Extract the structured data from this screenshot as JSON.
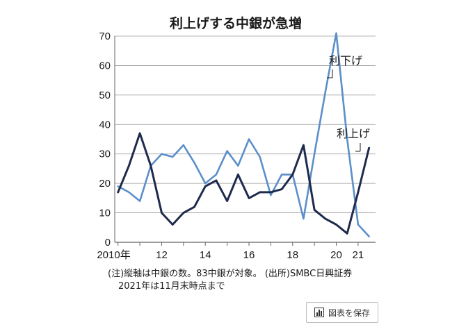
{
  "chart_data": {
    "type": "line",
    "title": "利上げする中銀が急増",
    "x": [
      2010.0,
      2010.5,
      2011.0,
      2011.5,
      2012.0,
      2012.5,
      2013.0,
      2013.5,
      2014.0,
      2014.5,
      2015.0,
      2015.5,
      2016.0,
      2016.5,
      2017.0,
      2017.5,
      2018.0,
      2018.5,
      2019.0,
      2019.5,
      2020.0,
      2020.5,
      2021.0,
      2021.5
    ],
    "series": [
      {
        "name": "利下げ",
        "color": "#5b8fc9",
        "values": [
          19,
          17,
          14,
          26,
          30,
          29,
          33,
          27,
          20,
          23,
          31,
          26,
          35,
          29,
          16,
          23,
          23,
          8,
          30,
          51,
          71,
          35,
          6,
          2
        ]
      },
      {
        "name": "利上げ",
        "color": "#1f2b4d",
        "values": [
          17,
          26,
          37,
          26,
          10,
          6,
          10,
          12,
          19,
          21,
          14,
          23,
          15,
          17,
          17,
          18,
          23,
          33,
          11,
          8,
          6,
          3,
          17,
          32
        ]
      }
    ],
    "ylim": [
      0,
      70
    ],
    "yticks": [
      0,
      10,
      20,
      30,
      40,
      50,
      60,
      70
    ],
    "xticks": [
      {
        "value": 2010,
        "label": "2010年"
      },
      {
        "value": 2012,
        "label": "12"
      },
      {
        "value": 2014,
        "label": "14"
      },
      {
        "value": 2016,
        "label": "16"
      },
      {
        "value": 2018,
        "label": "18"
      },
      {
        "value": 2020,
        "label": "20"
      },
      {
        "value": 2021,
        "label": "21"
      }
    ],
    "xlim": [
      2009.85,
      2021.8
    ],
    "grid": "horizontal",
    "notes": {
      "line1": "(注)縦軸は中銀の数。83中銀が対象。 (出所)SMBC日興証券",
      "line2": "2021年は11月末時点まで"
    }
  },
  "ui": {
    "save_button_label": "図表を保存",
    "save_icon": "bar-chart-icon"
  }
}
